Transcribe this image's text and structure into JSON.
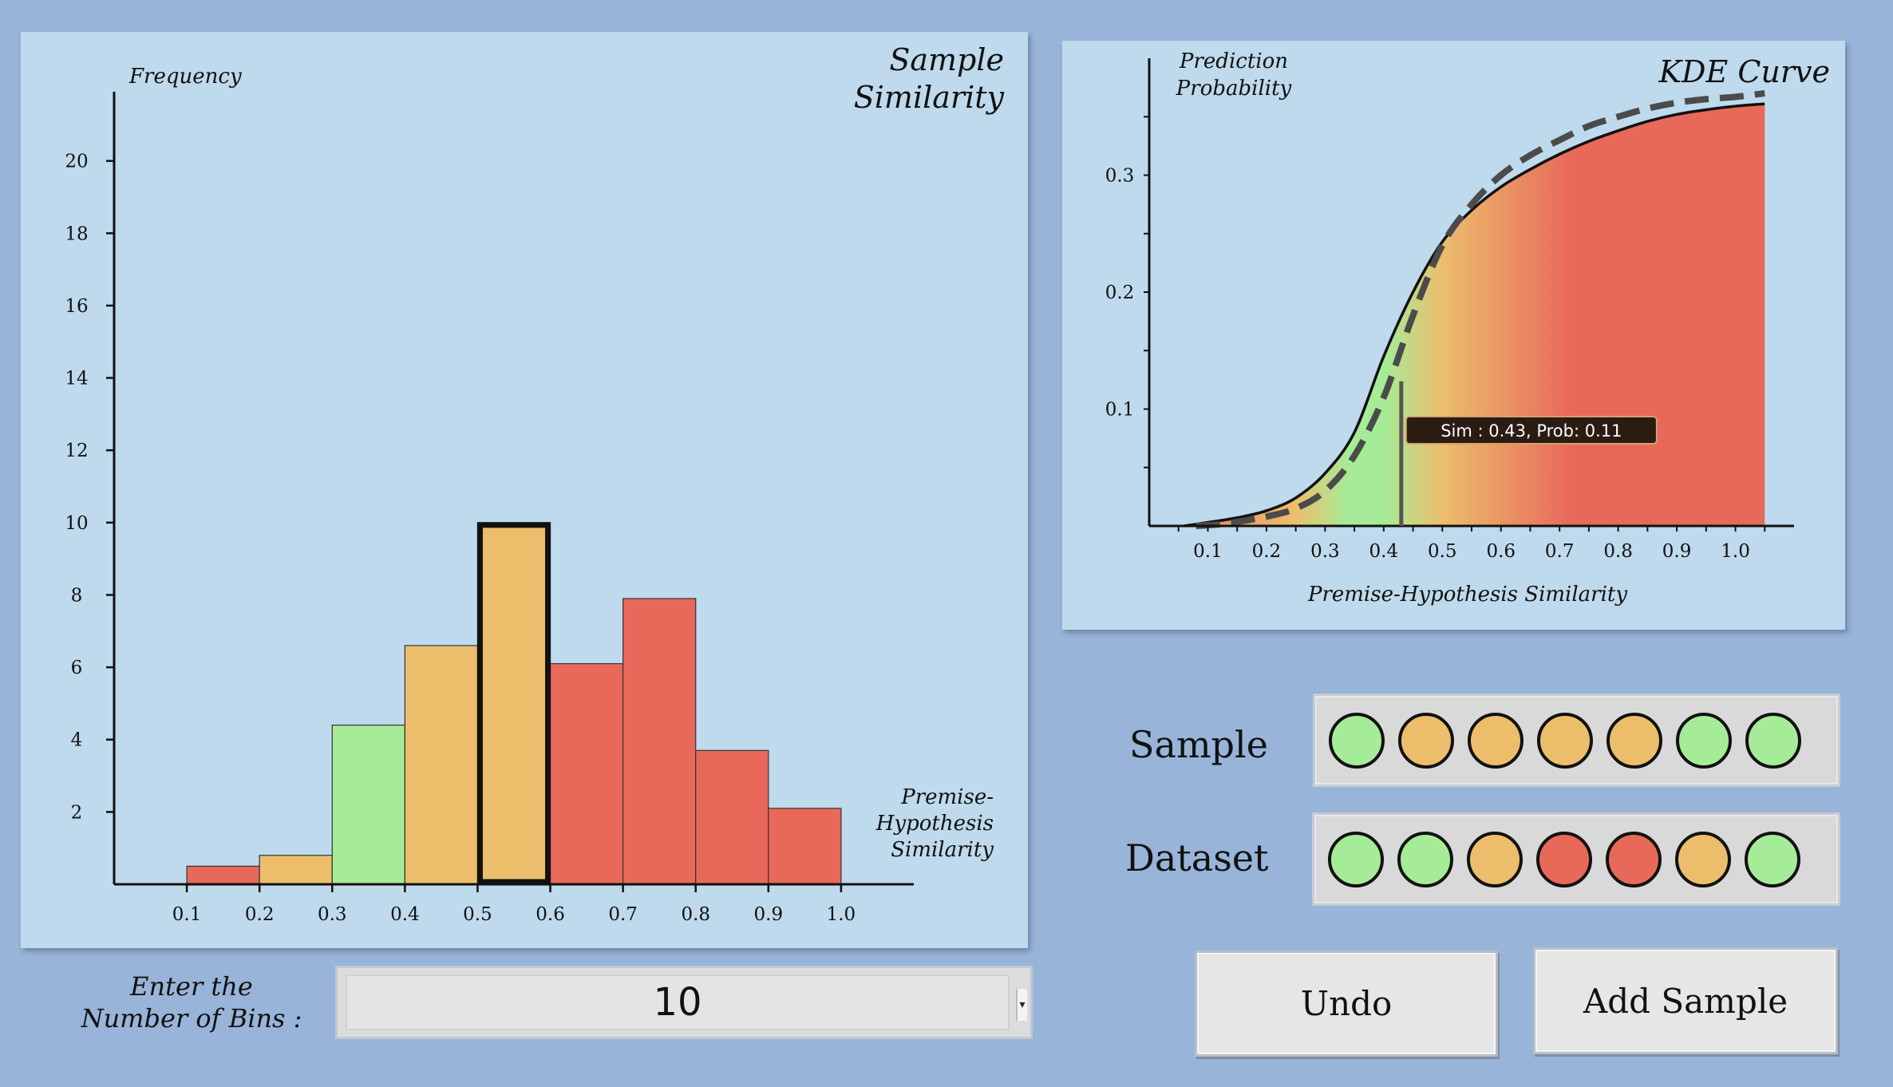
{
  "histogram": {
    "chart_data": {
      "type": "bar",
      "title": "Sample Similarity",
      "title_lines": [
        "Sample",
        "Similarity"
      ],
      "ylabel": "Frequency",
      "xlabel": "Premise-Hypothesis Similarity",
      "xlabel_lines": [
        "Premise-",
        "Hypothesis",
        "Similarity"
      ],
      "ylim": [
        0,
        22
      ],
      "xlim": [
        0,
        1.1
      ],
      "y_ticks": [
        2,
        4,
        6,
        8,
        10,
        12,
        14,
        16,
        18,
        20
      ],
      "x_tick_labels": [
        "0.1",
        "0.2",
        "0.3",
        "0.4",
        "0.5",
        "0.6",
        "0.7",
        "0.8",
        "0.9",
        "1.0"
      ],
      "bins": [
        {
          "start": 0.1,
          "end": 0.2,
          "value": 0.5,
          "color": "#e8695a"
        },
        {
          "start": 0.2,
          "end": 0.3,
          "value": 0.8,
          "color": "#ecbe6c"
        },
        {
          "start": 0.3,
          "end": 0.4,
          "value": 4.4,
          "color": "#a6ec98"
        },
        {
          "start": 0.4,
          "end": 0.5,
          "value": 6.6,
          "color": "#ecbe6c"
        },
        {
          "start": 0.5,
          "end": 0.6,
          "value": 10,
          "color": "#ecbe6c",
          "highlighted": true
        },
        {
          "start": 0.6,
          "end": 0.7,
          "value": 6.1,
          "color": "#e8695a"
        },
        {
          "start": 0.7,
          "end": 0.8,
          "value": 7.9,
          "color": "#e8695a"
        },
        {
          "start": 0.8,
          "end": 0.9,
          "value": 3.7,
          "color": "#e8695a"
        },
        {
          "start": 0.9,
          "end": 1.0,
          "value": 2.1,
          "color": "#e8695a"
        }
      ]
    }
  },
  "kde": {
    "chart_data": {
      "type": "line",
      "title": "KDE Curve",
      "ylabel": "Prediction Probability",
      "ylabel_lines": [
        "Prediction",
        "Probability"
      ],
      "xlabel": "Premise-Hypothesis Similarity",
      "xlim": [
        0,
        1.1
      ],
      "ylim": [
        0,
        0.4
      ],
      "x_tick_labels": [
        "0.1",
        "0.2",
        "0.3",
        "0.4",
        "0.5",
        "0.6",
        "0.7",
        "0.8",
        "0.9",
        "1.0"
      ],
      "y_tick_labels": [
        "0.1",
        "0.2",
        "0.3"
      ],
      "series": [
        {
          "name": "kde-solid",
          "style": "solid",
          "x": [
            0.06,
            0.1,
            0.15,
            0.2,
            0.25,
            0.3,
            0.35,
            0.4,
            0.45,
            0.5,
            0.55,
            0.6,
            0.65,
            0.7,
            0.75,
            0.8,
            0.85,
            0.9,
            0.95,
            1.0,
            1.05
          ],
          "y": [
            0.0,
            0.003,
            0.007,
            0.013,
            0.024,
            0.045,
            0.08,
            0.145,
            0.2,
            0.243,
            0.27,
            0.29,
            0.305,
            0.318,
            0.329,
            0.338,
            0.346,
            0.352,
            0.356,
            0.359,
            0.361
          ]
        },
        {
          "name": "kde-dashed",
          "style": "dashed",
          "x": [
            0.08,
            0.13,
            0.2,
            0.25,
            0.3,
            0.35,
            0.4,
            0.45,
            0.5,
            0.55,
            0.6,
            0.65,
            0.7,
            0.75,
            0.8,
            0.85,
            0.9,
            0.95,
            1.0,
            1.05
          ],
          "y": [
            0.0,
            0.002,
            0.008,
            0.015,
            0.03,
            0.06,
            0.11,
            0.18,
            0.24,
            0.275,
            0.3,
            0.317,
            0.33,
            0.342,
            0.35,
            0.357,
            0.362,
            0.365,
            0.367,
            0.37
          ]
        }
      ],
      "gradient_stops": [
        {
          "x": 0.0,
          "color": "#e8695a"
        },
        {
          "x": 0.25,
          "color": "#ecbe6c"
        },
        {
          "x": 0.34,
          "color": "#a6ec98"
        },
        {
          "x": 0.4,
          "color": "#a6ec98"
        },
        {
          "x": 0.5,
          "color": "#ecbe6c"
        },
        {
          "x": 0.72,
          "color": "#e8695a"
        },
        {
          "x": 1.05,
          "color": "#e8695a"
        }
      ],
      "marker": {
        "x": 0.43,
        "y": 0.11,
        "tooltip": "Sim : 0.43, Prob: 0.11"
      }
    }
  },
  "sample": {
    "label": "Sample",
    "dots": [
      "#a6ec98",
      "#ecbe6c",
      "#ecbe6c",
      "#ecbe6c",
      "#ecbe6c",
      "#a6ec98",
      "#a6ec98"
    ]
  },
  "dataset": {
    "label": "Dataset",
    "dots": [
      "#a6ec98",
      "#a6ec98",
      "#ecbe6c",
      "#e8695a",
      "#e8695a",
      "#ecbe6c",
      "#a6ec98"
    ]
  },
  "bins_input": {
    "label_lines": [
      "Enter the",
      "Number of Bins :"
    ],
    "value": "10"
  },
  "buttons": {
    "undo": "Undo",
    "add_sample": "Add Sample"
  }
}
